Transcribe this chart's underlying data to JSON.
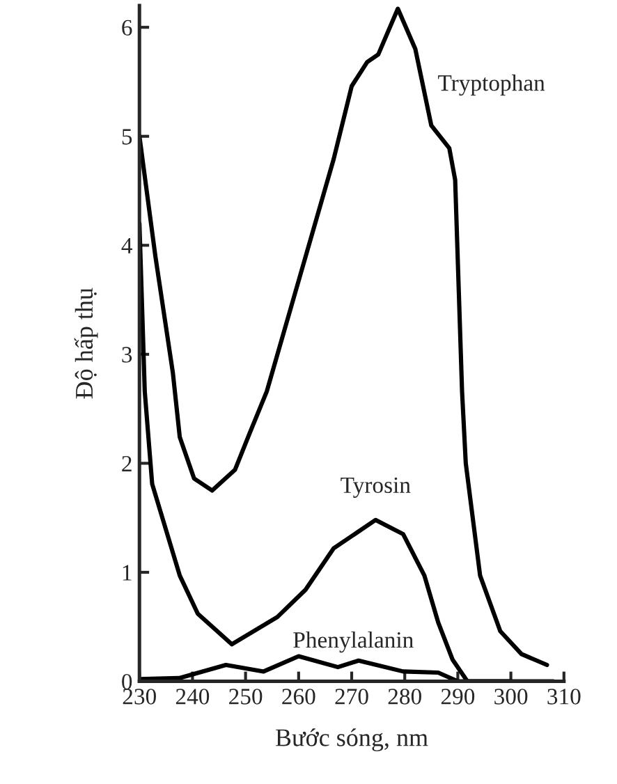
{
  "chart_data": {
    "type": "line",
    "xlabel": "Bước sóng, nm",
    "ylabel": "Độ hấp thụ",
    "xlim": [
      230,
      310
    ],
    "ylim": [
      0,
      6.2
    ],
    "xticks": [
      230,
      240,
      250,
      260,
      270,
      280,
      290,
      300,
      310
    ],
    "yticks": [
      0,
      1,
      2,
      3,
      4,
      5,
      6
    ],
    "grid": false,
    "legend": false,
    "marker": "none",
    "line_style": "solid",
    "series": [
      {
        "name": "Tryptophan",
        "color": "#000000",
        "x": [
          230,
          233,
          236.3,
          237.6,
          240.3,
          243.7,
          248,
          250.8,
          254,
          259.5,
          266.6,
          270,
          272.9,
          275,
          278.7,
          282,
          285,
          288.4,
          289.5,
          290.8,
          291.5,
          294.2,
          298,
          302,
          306.8
        ],
        "values": [
          5.0,
          3.9,
          2.83,
          2.24,
          1.86,
          1.75,
          1.94,
          2.28,
          2.66,
          3.59,
          4.79,
          5.46,
          5.68,
          5.75,
          6.17,
          5.8,
          5.1,
          4.89,
          4.6,
          2.66,
          2.0,
          0.97,
          0.46,
          0.25,
          0.15
        ]
      },
      {
        "name": "Tyrosin",
        "color": "#000000",
        "x": [
          230,
          231,
          232.4,
          235,
          237.6,
          241,
          247.4,
          256,
          261.3,
          266.6,
          274.5,
          279.7,
          283.7,
          286.3,
          289,
          291.8,
          296,
          300
        ],
        "values": [
          4.2,
          2.66,
          1.81,
          1.39,
          0.97,
          0.62,
          0.34,
          0.59,
          0.84,
          1.22,
          1.48,
          1.35,
          0.97,
          0.54,
          0.2,
          0,
          0,
          0
        ]
      },
      {
        "name": "Phenylalanin",
        "color": "#000000",
        "x": [
          230,
          237.6,
          246.3,
          253.4,
          260,
          267.4,
          271.3,
          279.7,
          286.3,
          290,
          300,
          308
        ],
        "values": [
          0.02,
          0.03,
          0.15,
          0.09,
          0.23,
          0.13,
          0.19,
          0.09,
          0.08,
          0,
          0,
          0
        ]
      }
    ]
  }
}
